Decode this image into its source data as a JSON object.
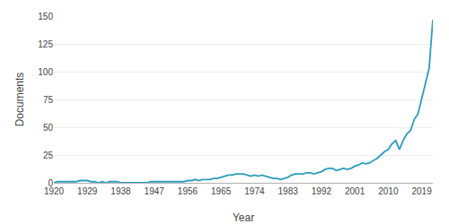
{
  "chart_data": {
    "type": "line",
    "x": [
      1920,
      1921,
      1922,
      1923,
      1924,
      1925,
      1926,
      1927,
      1928,
      1929,
      1930,
      1931,
      1932,
      1933,
      1934,
      1935,
      1936,
      1937,
      1938,
      1939,
      1940,
      1941,
      1942,
      1943,
      1944,
      1945,
      1946,
      1947,
      1948,
      1949,
      1950,
      1951,
      1952,
      1953,
      1954,
      1955,
      1956,
      1957,
      1958,
      1959,
      1960,
      1961,
      1962,
      1963,
      1964,
      1965,
      1966,
      1967,
      1968,
      1969,
      1970,
      1971,
      1972,
      1973,
      1974,
      1975,
      1976,
      1977,
      1978,
      1979,
      1980,
      1981,
      1982,
      1983,
      1984,
      1985,
      1986,
      1987,
      1988,
      1989,
      1990,
      1991,
      1992,
      1993,
      1994,
      1995,
      1996,
      1997,
      1998,
      1999,
      2000,
      2001,
      2002,
      2003,
      2004,
      2005,
      2006,
      2007,
      2008,
      2009,
      2010,
      2011,
      2012,
      2013,
      2014,
      2015,
      2016,
      2017,
      2018,
      2019,
      2020,
      2021,
      2022
    ],
    "values": [
      0,
      1,
      1,
      1,
      1,
      1,
      1,
      2,
      2,
      2,
      1,
      1,
      0,
      1,
      0,
      1,
      1,
      1,
      0,
      0,
      0,
      0,
      0,
      0,
      0,
      0,
      1,
      1,
      1,
      1,
      1,
      1,
      1,
      1,
      1,
      1,
      2,
      2,
      3,
      2,
      3,
      3,
      3,
      4,
      4,
      5,
      6,
      7,
      7,
      8,
      8,
      8,
      7,
      6,
      7,
      6,
      7,
      6,
      5,
      4,
      4,
      3,
      4,
      5,
      7,
      8,
      8,
      8,
      9,
      9,
      8,
      9,
      10,
      12,
      13,
      13,
      11,
      12,
      13,
      12,
      13,
      15,
      16,
      18,
      17,
      18,
      20,
      22,
      25,
      28,
      30,
      35,
      38,
      30,
      38,
      44,
      47,
      57,
      62,
      75,
      90,
      103,
      147
    ],
    "color": "#2b9dbf",
    "xlabel": "Year",
    "ylabel": "Documents",
    "xlim": [
      1920,
      2022
    ],
    "ylim": [
      0,
      150
    ],
    "xticks": [
      1920,
      1929,
      1938,
      1947,
      1956,
      1965,
      1974,
      1983,
      1992,
      2001,
      2010,
      2019
    ],
    "yticks": [
      0,
      25,
      50,
      75,
      100,
      125,
      150
    ],
    "grid": true
  }
}
